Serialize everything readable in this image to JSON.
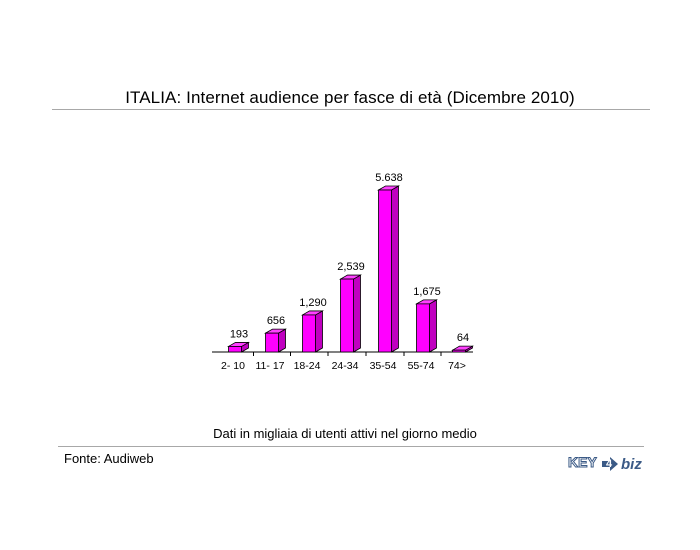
{
  "title": "ITALIA: Internet audience per fasce di età (Dicembre 2010)",
  "note": "Dati in migliaia di utenti attivi nel giorno medio",
  "source": "Fonte: Audiweb",
  "logo": {
    "text_left": "KEY",
    "digit": "4",
    "text_right": "biz",
    "color": "#3b5a86"
  },
  "colors": {
    "bar_front": "#ff00ff",
    "bar_side": "#c000c0",
    "bar_top": "#ff40ff",
    "bar_edge": "#000000"
  },
  "chart_data": {
    "type": "bar",
    "title": "ITALIA: Internet audience per fasce di età (Dicembre 2010)",
    "categories": [
      "2- 10",
      "11- 17",
      "18-24",
      "24-34",
      "35-54",
      "55-74",
      "74>"
    ],
    "values": [
      193,
      656,
      1290,
      2539,
      5638,
      1675,
      64
    ],
    "value_labels": [
      "193",
      "656",
      "1,290",
      "2,539",
      "5.638",
      "1,675",
      "64"
    ],
    "xlabel": "",
    "ylabel": "",
    "ylim": [
      0,
      5638
    ],
    "grid": false,
    "legend": "none",
    "style": "3d"
  }
}
